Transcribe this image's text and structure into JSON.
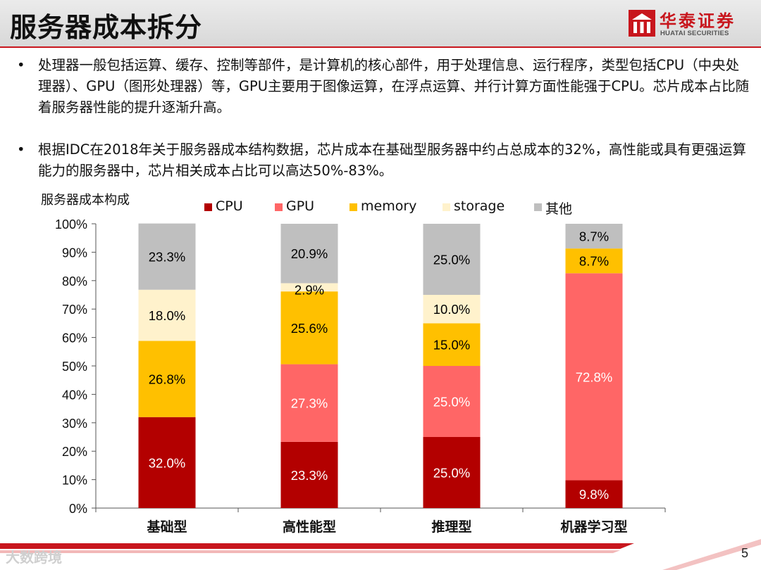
{
  "header": {
    "title": "服务器成本拆分",
    "logo_cn": "华泰证券",
    "logo_en": "HUATAI SECURITIES",
    "brand_color": "#c8161d"
  },
  "bullets": [
    "处理器一般包括运算、缓存、控制等部件，是计算机的核心部件，用于处理信息、运行程序，类型包括CPU（中央处理器）、GPU（图形处理器）等，GPU主要用于图像运算，在浮点运算、并行计算方面性能强于CPU。芯片成本占比随着服务器性能的提升逐渐升高。",
    "根据IDC在2018年关于服务器成本结构数据，芯片成本在基础型服务器中约占总成本的32%，高性能或具有更强运算能力的服务器中，芯片相关成本占比可以高达50%-83%。"
  ],
  "bullet_symbol": "•",
  "chart_data": {
    "type": "bar",
    "stacked": true,
    "title": "服务器成本构成",
    "categories": [
      "基础型",
      "高性能型",
      "推理型",
      "机器学习型"
    ],
    "series": [
      {
        "name": "CPU",
        "color": "#b30000",
        "values": [
          32.0,
          23.3,
          25.0,
          9.8
        ],
        "labels": [
          "32.0%",
          "23.3%",
          "25.0%",
          "9.8%"
        ],
        "label_color": "#ffffff"
      },
      {
        "name": "GPU",
        "color": "#ff6666",
        "values": [
          0,
          27.3,
          25.0,
          72.8
        ],
        "labels": [
          "",
          "27.3%",
          "25.0%",
          "72.8%"
        ],
        "label_color": "#ffffff"
      },
      {
        "name": "memory",
        "color": "#ffc000",
        "values": [
          26.8,
          25.6,
          15.0,
          8.7
        ],
        "labels": [
          "26.8%",
          "25.6%",
          "15.0%",
          "8.7%"
        ],
        "label_color": "#000000"
      },
      {
        "name": "storage",
        "color": "#fff2cc",
        "values": [
          18.0,
          2.9,
          10.0,
          0
        ],
        "labels": [
          "18.0%",
          "2.9%",
          "10.0%",
          ""
        ],
        "label_color": "#000000"
      },
      {
        "name": "其他",
        "color": "#bfbfbf",
        "values": [
          23.3,
          20.9,
          25.0,
          8.7
        ],
        "labels": [
          "23.3%",
          "20.9%",
          "25.0%",
          "8.7%"
        ],
        "label_color": "#000000"
      }
    ],
    "y_ticks": [
      "0%",
      "10%",
      "20%",
      "30%",
      "40%",
      "50%",
      "60%",
      "70%",
      "80%",
      "90%",
      "100%"
    ],
    "ylim": [
      0,
      100
    ],
    "grid": false,
    "legend_position": "top"
  },
  "footer": {
    "page_number": "5",
    "watermark": "大数跨境"
  }
}
